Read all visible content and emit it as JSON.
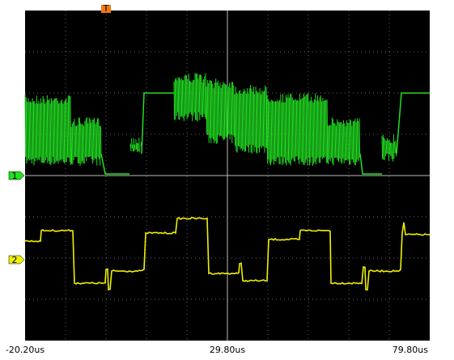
{
  "screen": {
    "trigger_marker": "T",
    "channels": [
      {
        "label": "1"
      },
      {
        "label": "2"
      }
    ],
    "time_labels": [
      "-20.20us",
      "29.80us",
      "79.80us"
    ]
  }
}
